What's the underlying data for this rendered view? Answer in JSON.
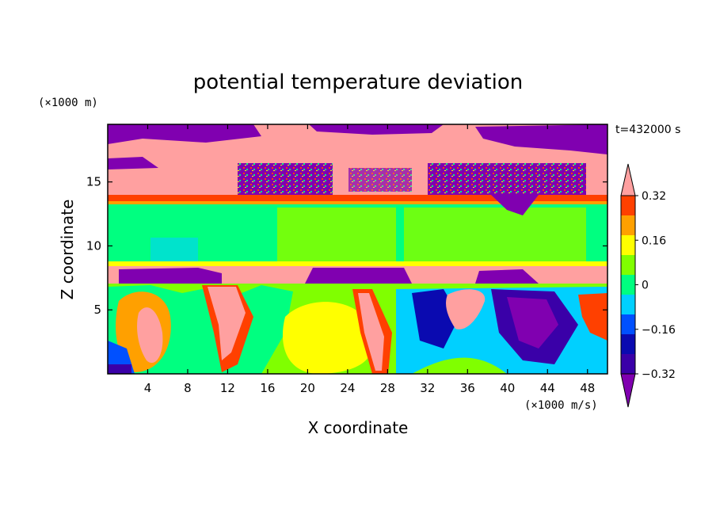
{
  "chart_data": {
    "type": "heatmap",
    "title": "potential temperature deviation",
    "xlabel": "X coordinate",
    "ylabel": "Z coordinate",
    "x_unit": "(×1000 m/s)",
    "y_unit": "(×1000 m)",
    "time_label": "t=432000 s",
    "xlim": [
      0,
      50
    ],
    "ylim": [
      0,
      19.5
    ],
    "x_ticks": [
      4,
      8,
      12,
      16,
      20,
      24,
      28,
      32,
      36,
      40,
      44,
      48
    ],
    "y_ticks": [
      5,
      10,
      15
    ],
    "colorbar": {
      "levels": [
        -0.4,
        -0.32,
        -0.24,
        -0.16,
        -0.08,
        0,
        0.08,
        0.16,
        0.24,
        0.32,
        0.4
      ],
      "labels": [
        "0.32",
        "0.16",
        "0",
        "−0.16",
        "−0.32"
      ],
      "label_values": [
        0.32,
        0.16,
        0,
        -0.16,
        -0.32
      ],
      "colors_low_to_high": [
        "#8000b0",
        "#3a00a8",
        "#0a0ab0",
        "#0050ff",
        "#00d0ff",
        "#00ff80",
        "#80ff00",
        "#ffff00",
        "#ffa000",
        "#ff4000",
        "#ffa0a0"
      ],
      "extend": "both"
    },
    "bands": [
      {
        "z_range": [
          17.2,
          19.5
        ],
        "description": "mixed",
        "dominant": [
          -0.4,
          0.4
        ]
      },
      {
        "z_range": [
          14.2,
          17.2
        ],
        "dominant": [
          -0.4,
          0.4
        ]
      },
      {
        "z_range": [
          13.6,
          14.2
        ],
        "dominant": [
          0.32
        ]
      },
      {
        "z_range": [
          8.8,
          13.6
        ],
        "dominant": [
          -0.08,
          0.08
        ]
      },
      {
        "z_range": [
          7.0,
          8.8
        ],
        "dominant": [
          -0.4,
          0.4
        ]
      },
      {
        "z_range": [
          0,
          7.0
        ],
        "dominant": [
          -0.4,
          0.4
        ]
      }
    ]
  }
}
